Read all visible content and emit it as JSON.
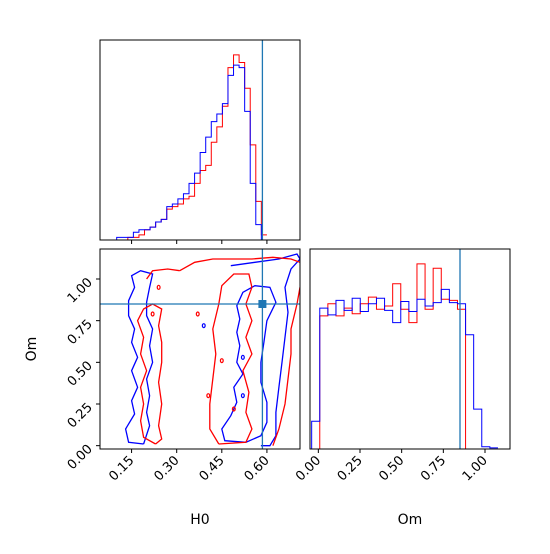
{
  "colors": {
    "red": "#ff0000",
    "blue": "#0000ff",
    "truth": "#1f77b4",
    "axis": "#000000"
  },
  "chart_data": [
    {
      "type": "histogram",
      "panel": "H0 marginal (top-left)",
      "xlim": [
        0.045,
        0.71
      ],
      "bins_start": 0.045,
      "bin_width": 0.0185,
      "series": [
        {
          "color": "red",
          "values": [
            0,
            0,
            0,
            0,
            0,
            1,
            1,
            2,
            4,
            5,
            7,
            8,
            12,
            13,
            14,
            16,
            17,
            22,
            27,
            29,
            38,
            44,
            52,
            67,
            72,
            69,
            59,
            37,
            15,
            2
          ]
        },
        {
          "color": "blue",
          "values": [
            0,
            0,
            0,
            1,
            1,
            1,
            3,
            4,
            4,
            5,
            7,
            8,
            13,
            14,
            16,
            18,
            22,
            26,
            34,
            40,
            46,
            49,
            53,
            64,
            68,
            67,
            50,
            22,
            6,
            0
          ]
        }
      ],
      "truth_x": 0.585
    },
    {
      "type": "contour",
      "panel": "H0 vs Om joint (bottom-left)",
      "xlabel": "H0",
      "ylabel": "Om",
      "xlim": [
        0.045,
        0.71
      ],
      "ylim": [
        -0.02,
        1.18
      ],
      "xticks": [
        "0.15",
        "0.30",
        "0.45",
        "0.60"
      ],
      "xtick_values": [
        0.15,
        0.3,
        0.45,
        0.6
      ],
      "yticks": [
        "0.00",
        "0.25",
        "0.50",
        "0.75",
        "1.00"
      ],
      "ytick_values": [
        0.0,
        0.25,
        0.5,
        0.75,
        1.0
      ],
      "truth": {
        "x": 0.585,
        "y": 0.85
      },
      "series": [
        {
          "color": "blue",
          "contours": [
            [
              [
                0.19,
                0.01
              ],
              [
                0.14,
                0.02
              ],
              [
                0.13,
                0.1
              ],
              [
                0.16,
                0.19
              ],
              [
                0.15,
                0.27
              ],
              [
                0.17,
                0.35
              ],
              [
                0.15,
                0.45
              ],
              [
                0.17,
                0.53
              ],
              [
                0.15,
                0.62
              ],
              [
                0.16,
                0.7
              ],
              [
                0.14,
                0.78
              ],
              [
                0.14,
                0.87
              ],
              [
                0.16,
                0.95
              ],
              [
                0.15,
                1.02
              ],
              [
                0.18,
                1.05
              ],
              [
                0.22,
                1.03
              ],
              [
                0.21,
                0.95
              ],
              [
                0.2,
                0.86
              ],
              [
                0.2,
                0.78
              ],
              [
                0.22,
                0.7
              ],
              [
                0.21,
                0.6
              ],
              [
                0.22,
                0.5
              ],
              [
                0.2,
                0.4
              ],
              [
                0.21,
                0.3
              ],
              [
                0.2,
                0.2
              ],
              [
                0.21,
                0.12
              ],
              [
                0.19,
                0.01
              ]
            ],
            [
              [
                0.53,
                0.02
              ],
              [
                0.46,
                0.03
              ],
              [
                0.45,
                0.1
              ],
              [
                0.48,
                0.18
              ],
              [
                0.5,
                0.26
              ],
              [
                0.49,
                0.35
              ],
              [
                0.52,
                0.43
              ],
              [
                0.5,
                0.5
              ],
              [
                0.51,
                0.6
              ],
              [
                0.5,
                0.68
              ],
              [
                0.51,
                0.76
              ],
              [
                0.5,
                0.84
              ],
              [
                0.52,
                0.92
              ],
              [
                0.56,
                0.96
              ],
              [
                0.61,
                0.95
              ],
              [
                0.63,
                0.86
              ],
              [
                0.6,
                0.75
              ],
              [
                0.59,
                0.62
              ],
              [
                0.58,
                0.5
              ],
              [
                0.58,
                0.38
              ],
              [
                0.6,
                0.26
              ],
              [
                0.6,
                0.14
              ],
              [
                0.58,
                0.06
              ],
              [
                0.53,
                0.02
              ]
            ],
            [
              [
                0.48,
                1.08
              ],
              [
                0.56,
                1.1
              ],
              [
                0.64,
                1.12
              ],
              [
                0.7,
                1.15
              ],
              [
                0.71,
                1.12
              ],
              [
                0.68,
                1.06
              ],
              [
                0.66,
                0.95
              ],
              [
                0.67,
                0.8
              ],
              [
                0.66,
                0.65
              ],
              [
                0.65,
                0.5
              ],
              [
                0.64,
                0.35
              ],
              [
                0.63,
                0.2
              ],
              [
                0.63,
                0.06
              ],
              [
                0.61,
                0.0
              ],
              [
                0.58,
                0.0
              ]
            ]
          ]
        },
        {
          "color": "red",
          "contours": [
            [
              [
                0.23,
                0.01
              ],
              [
                0.19,
                0.05
              ],
              [
                0.18,
                0.15
              ],
              [
                0.19,
                0.25
              ],
              [
                0.18,
                0.35
              ],
              [
                0.2,
                0.45
              ],
              [
                0.18,
                0.55
              ],
              [
                0.19,
                0.65
              ],
              [
                0.17,
                0.75
              ],
              [
                0.19,
                0.82
              ],
              [
                0.22,
                0.85
              ],
              [
                0.25,
                0.82
              ],
              [
                0.24,
                0.72
              ],
              [
                0.25,
                0.62
              ],
              [
                0.25,
                0.5
              ],
              [
                0.24,
                0.38
              ],
              [
                0.25,
                0.25
              ],
              [
                0.24,
                0.12
              ],
              [
                0.25,
                0.04
              ],
              [
                0.23,
                0.01
              ]
            ],
            [
              [
                0.31,
                1.05
              ],
              [
                0.36,
                1.1
              ],
              [
                0.42,
                1.12
              ],
              [
                0.48,
                1.12
              ],
              [
                0.55,
                1.12
              ],
              [
                0.62,
                1.13
              ],
              [
                0.68,
                1.12
              ],
              [
                0.71,
                1.1
              ]
            ],
            [
              [
                0.2,
                1.0
              ],
              [
                0.22,
                1.05
              ],
              [
                0.27,
                1.06
              ],
              [
                0.31,
                1.05
              ]
            ],
            [
              [
                0.44,
                0.01
              ],
              [
                0.41,
                0.1
              ],
              [
                0.41,
                0.25
              ],
              [
                0.42,
                0.4
              ],
              [
                0.43,
                0.55
              ],
              [
                0.42,
                0.7
              ],
              [
                0.44,
                0.85
              ],
              [
                0.45,
                0.96
              ],
              [
                0.49,
                1.03
              ],
              [
                0.54,
                1.03
              ],
              [
                0.55,
                0.95
              ],
              [
                0.53,
                0.85
              ],
              [
                0.55,
                0.75
              ],
              [
                0.53,
                0.65
              ],
              [
                0.55,
                0.55
              ],
              [
                0.52,
                0.45
              ],
              [
                0.54,
                0.32
              ],
              [
                0.53,
                0.2
              ],
              [
                0.55,
                0.1
              ],
              [
                0.53,
                0.02
              ],
              [
                0.44,
                0.01
              ]
            ],
            [
              [
                0.62,
                0.0
              ],
              [
                0.64,
                0.1
              ],
              [
                0.66,
                0.25
              ],
              [
                0.67,
                0.4
              ],
              [
                0.68,
                0.55
              ],
              [
                0.68,
                0.7
              ],
              [
                0.7,
                0.85
              ],
              [
                0.71,
                0.95
              ]
            ]
          ]
        }
      ]
    },
    {
      "type": "histogram",
      "panel": "Om marginal (bottom-right)",
      "xlabel": "Om",
      "xlim": [
        -0.05,
        1.15
      ],
      "xticks": [
        "0.00",
        "0.25",
        "0.50",
        "0.75",
        "1.00"
      ],
      "xtick_values": [
        0.0,
        0.25,
        0.5,
        0.75,
        1.0
      ],
      "bins_start": -0.04,
      "bin_width": 0.0486,
      "series": [
        {
          "color": "red",
          "values": [
            0,
            120,
            131,
            120,
            127,
            122,
            131,
            137,
            126,
            129,
            149,
            126,
            114,
            167,
            126,
            163,
            135,
            134,
            126,
            0,
            0,
            0,
            0
          ]
        },
        {
          "color": "blue",
          "values": [
            25,
            127,
            121,
            134,
            125,
            136,
            124,
            131,
            136,
            125,
            114,
            133,
            124,
            135,
            129,
            132,
            144,
            132,
            131,
            103,
            36,
            2,
            1
          ]
        }
      ],
      "truth_x": 0.85
    }
  ]
}
